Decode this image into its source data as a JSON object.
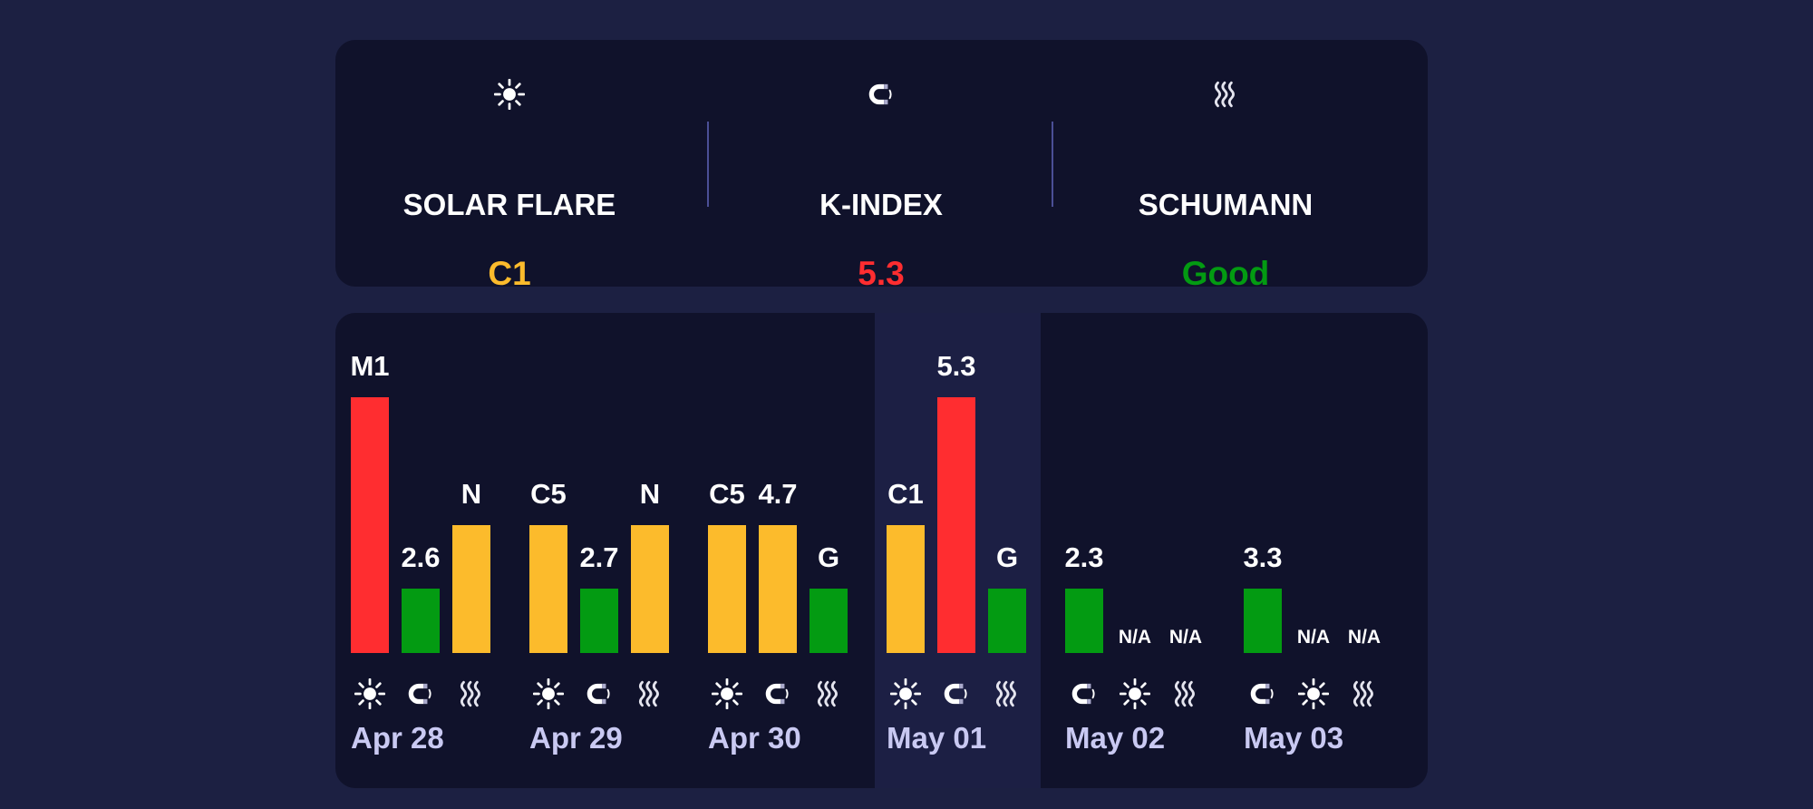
{
  "colors": {
    "high": "#ff2d30",
    "moderate": "#fcbb2c",
    "low": "#039b12",
    "date_text": "#c9c9f2"
  },
  "summary": [
    {
      "icon": "sun-icon",
      "label": "SOLAR FLARE",
      "value": "C1",
      "color": "#fcbb2c"
    },
    {
      "icon": "magnet-icon",
      "label": "K-INDEX",
      "value": "5.3",
      "color": "#ff2d30"
    },
    {
      "icon": "waves-icon",
      "label": "SCHUMANN",
      "value": "Good",
      "color": "#039b12"
    }
  ],
  "history": {
    "highlighted_day": "May 01",
    "days": [
      {
        "date": "Apr 28",
        "bars": [
          {
            "metric": "solar",
            "icon": "sun-icon",
            "label": "M1",
            "level": 1.0,
            "color": "#ff2d30"
          },
          {
            "metric": "kindex",
            "icon": "magnet-icon",
            "label": "2.6",
            "level": 0.25,
            "color": "#039b12"
          },
          {
            "metric": "schumann",
            "icon": "waves-icon",
            "label": "N",
            "level": 0.5,
            "color": "#fcbb2c"
          }
        ]
      },
      {
        "date": "Apr 29",
        "bars": [
          {
            "metric": "solar",
            "icon": "sun-icon",
            "label": "C5",
            "level": 0.5,
            "color": "#fcbb2c"
          },
          {
            "metric": "kindex",
            "icon": "magnet-icon",
            "label": "2.7",
            "level": 0.25,
            "color": "#039b12"
          },
          {
            "metric": "schumann",
            "icon": "waves-icon",
            "label": "N",
            "level": 0.5,
            "color": "#fcbb2c"
          }
        ]
      },
      {
        "date": "Apr 30",
        "bars": [
          {
            "metric": "solar",
            "icon": "sun-icon",
            "label": "C5",
            "level": 0.5,
            "color": "#fcbb2c"
          },
          {
            "metric": "kindex",
            "icon": "magnet-icon",
            "label": "4.7",
            "level": 0.5,
            "color": "#fcbb2c"
          },
          {
            "metric": "schumann",
            "icon": "waves-icon",
            "label": "G",
            "level": 0.25,
            "color": "#039b12"
          }
        ]
      },
      {
        "date": "May 01",
        "bars": [
          {
            "metric": "solar",
            "icon": "sun-icon",
            "label": "C1",
            "level": 0.5,
            "color": "#fcbb2c"
          },
          {
            "metric": "kindex",
            "icon": "magnet-icon",
            "label": "5.3",
            "level": 1.0,
            "color": "#ff2d30"
          },
          {
            "metric": "schumann",
            "icon": "waves-icon",
            "label": "G",
            "level": 0.25,
            "color": "#039b12"
          }
        ]
      },
      {
        "date": "May 02",
        "bars": [
          {
            "metric": "kindex",
            "icon": "magnet-icon",
            "label": "2.3",
            "level": 0.25,
            "color": "#039b12"
          },
          {
            "metric": "solar",
            "icon": "sun-icon",
            "label": "N/A",
            "level": 0,
            "color": "#039b12"
          },
          {
            "metric": "schumann",
            "icon": "waves-icon",
            "label": "N/A",
            "level": 0,
            "color": "#039b12"
          }
        ]
      },
      {
        "date": "May 03",
        "bars": [
          {
            "metric": "kindex",
            "icon": "magnet-icon",
            "label": "3.3",
            "level": 0.25,
            "color": "#039b12"
          },
          {
            "metric": "solar",
            "icon": "sun-icon",
            "label": "N/A",
            "level": 0,
            "color": "#039b12"
          },
          {
            "metric": "schumann",
            "icon": "waves-icon",
            "label": "N/A",
            "level": 0,
            "color": "#039b12"
          }
        ]
      }
    ]
  }
}
